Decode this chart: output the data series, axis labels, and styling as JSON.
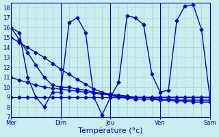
{
  "background_color": "#c8eef0",
  "grid_color": "#a8d8da",
  "line_color": "#0000bb",
  "marker": "D",
  "markersize": 2.5,
  "linewidth": 1.0,
  "xlabel": "Température (°c)",
  "xlabel_fontsize": 8,
  "ylim": [
    7,
    18.5
  ],
  "yticks": [
    7,
    8,
    9,
    10,
    11,
    12,
    13,
    14,
    15,
    16,
    17,
    18
  ],
  "tick_fontsize": 6,
  "xlim": [
    0,
    24
  ],
  "day_positions": [
    0,
    6,
    12,
    18,
    24
  ],
  "day_labels": [
    "Mer",
    "Dim",
    "Jeu",
    "Ven",
    "Sam"
  ],
  "lines": [
    {
      "x": [
        0,
        1,
        2,
        3,
        4,
        5,
        6,
        7,
        8,
        9,
        10,
        11,
        12,
        13,
        14,
        15,
        16,
        17,
        18,
        19,
        20,
        21,
        22,
        23,
        24
      ],
      "y": [
        16.0,
        15.5,
        11.0,
        9.0,
        8.0,
        9.5,
        9.5,
        16.5,
        17.0,
        15.5,
        9.0,
        7.2,
        9.0,
        10.5,
        17.2,
        17.0,
        16.3,
        11.3,
        9.5,
        9.7,
        16.7,
        18.2,
        18.3,
        15.8,
        9.0
      ]
    },
    {
      "x": [
        0,
        1,
        2,
        3,
        4,
        5,
        6,
        7,
        8,
        9,
        10,
        11,
        12,
        13,
        14,
        15,
        16,
        17,
        18,
        19,
        20,
        21,
        22,
        23,
        24
      ],
      "y": [
        16.0,
        14.8,
        13.5,
        12.2,
        11.0,
        10.2,
        10.0,
        10.0,
        9.8,
        9.7,
        9.5,
        9.4,
        9.3,
        9.2,
        9.1,
        9.0,
        9.0,
        9.0,
        9.0,
        9.0,
        9.0,
        9.0,
        9.0,
        9.0,
        9.0
      ]
    },
    {
      "x": [
        0,
        1,
        2,
        3,
        4,
        5,
        6,
        7,
        8,
        9,
        10,
        11,
        12,
        13,
        14,
        15,
        16,
        17,
        18,
        19,
        20,
        21,
        22,
        23,
        24
      ],
      "y": [
        11.0,
        10.7,
        10.5,
        10.2,
        10.0,
        9.9,
        9.8,
        9.7,
        9.6,
        9.5,
        9.4,
        9.3,
        9.2,
        9.1,
        9.0,
        9.0,
        9.0,
        8.9,
        8.8,
        8.8,
        8.7,
        8.7,
        8.7,
        8.7,
        8.7
      ]
    },
    {
      "x": [
        0,
        1,
        2,
        3,
        4,
        5,
        6,
        7,
        8,
        9,
        10,
        11,
        12,
        13,
        14,
        15,
        16,
        17,
        18,
        19,
        20,
        21,
        22,
        23,
        24
      ],
      "y": [
        9.0,
        9.0,
        9.0,
        9.0,
        9.0,
        9.0,
        9.0,
        9.0,
        9.0,
        9.0,
        9.0,
        9.0,
        9.0,
        9.0,
        9.0,
        9.0,
        9.0,
        9.0,
        9.0,
        9.0,
        9.0,
        9.0,
        9.0,
        9.0,
        9.0
      ]
    },
    {
      "x": [
        0,
        1,
        2,
        3,
        4,
        5,
        6,
        7,
        8,
        9,
        10,
        11,
        12,
        13,
        14,
        15,
        16,
        17,
        18,
        19,
        20,
        21,
        22,
        23,
        24
      ],
      "y": [
        15.0,
        14.5,
        14.0,
        13.5,
        13.0,
        12.4,
        11.8,
        11.3,
        10.8,
        10.3,
        9.8,
        9.5,
        9.2,
        9.0,
        8.9,
        8.8,
        8.8,
        8.8,
        8.7,
        8.7,
        8.6,
        8.6,
        8.5,
        8.5,
        8.5
      ]
    }
  ]
}
